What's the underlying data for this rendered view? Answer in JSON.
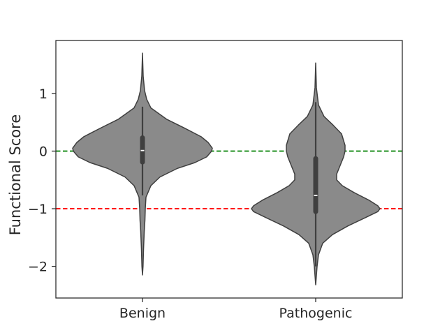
{
  "chart_data": {
    "type": "violin",
    "title": "",
    "xlabel": "",
    "ylabel": "Functional Score",
    "categories": [
      "Benign",
      "Pathogenic"
    ],
    "ylim": [
      -2.55,
      1.92
    ],
    "yticks": [
      1,
      0,
      -1,
      -2
    ],
    "ytick_labels": [
      "1",
      "0",
      "−1",
      "−2"
    ],
    "grid": false,
    "violin_color": "#8a8a8a",
    "edge_color": "#3f3f3f",
    "reference_lines": [
      {
        "y": 0,
        "color": "#008000",
        "style": "dashed"
      },
      {
        "y": -1,
        "color": "#ff0000",
        "style": "dashed"
      }
    ],
    "violins": [
      {
        "category": "Benign",
        "min": -2.15,
        "max": 1.7,
        "q1": -0.19,
        "median": 0.01,
        "q3": 0.23,
        "whisker_low": -0.77,
        "whisker_high": 0.77,
        "density_profile": [
          [
            1.7,
            0.0
          ],
          [
            1.3,
            0.01
          ],
          [
            1.05,
            0.03
          ],
          [
            0.9,
            0.06
          ],
          [
            0.75,
            0.12
          ],
          [
            0.55,
            0.35
          ],
          [
            0.4,
            0.6
          ],
          [
            0.25,
            0.84
          ],
          [
            0.15,
            0.94
          ],
          [
            0.05,
            1.0
          ],
          [
            0.0,
            0.99
          ],
          [
            -0.1,
            0.92
          ],
          [
            -0.2,
            0.75
          ],
          [
            -0.3,
            0.5
          ],
          [
            -0.45,
            0.25
          ],
          [
            -0.6,
            0.12
          ],
          [
            -0.8,
            0.05
          ],
          [
            -1.0,
            0.04
          ],
          [
            -1.2,
            0.035
          ],
          [
            -1.4,
            0.025
          ],
          [
            -1.7,
            0.015
          ],
          [
            -2.0,
            0.008
          ],
          [
            -2.15,
            0.0
          ]
        ]
      },
      {
        "category": "Pathogenic",
        "min": -2.32,
        "max": 1.53,
        "q1": -1.05,
        "median": -0.77,
        "q3": -0.13,
        "whisker_low": -2.0,
        "whisker_high": 0.85,
        "density_profile": [
          [
            1.53,
            0.0
          ],
          [
            1.1,
            0.01
          ],
          [
            0.8,
            0.04
          ],
          [
            0.6,
            0.12
          ],
          [
            0.45,
            0.25
          ],
          [
            0.3,
            0.37
          ],
          [
            0.1,
            0.42
          ],
          [
            0.0,
            0.42
          ],
          [
            -0.1,
            0.4
          ],
          [
            -0.25,
            0.35
          ],
          [
            -0.4,
            0.3
          ],
          [
            -0.5,
            0.3
          ],
          [
            -0.6,
            0.38
          ],
          [
            -0.72,
            0.55
          ],
          [
            -0.85,
            0.76
          ],
          [
            -0.95,
            0.89
          ],
          [
            -1.0,
            0.92
          ],
          [
            -1.05,
            0.89
          ],
          [
            -1.15,
            0.72
          ],
          [
            -1.3,
            0.46
          ],
          [
            -1.45,
            0.24
          ],
          [
            -1.6,
            0.1
          ],
          [
            -1.8,
            0.04
          ],
          [
            -2.0,
            0.02
          ],
          [
            -2.32,
            0.0
          ]
        ]
      }
    ]
  }
}
